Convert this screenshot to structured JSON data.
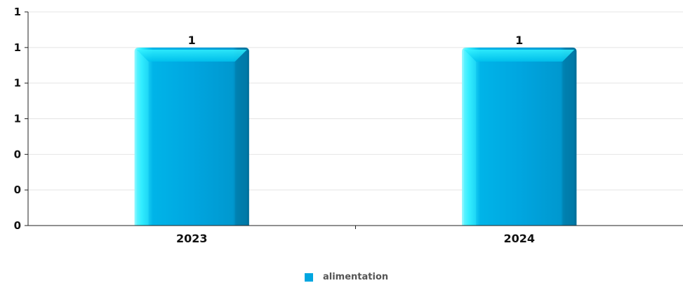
{
  "chart_data": {
    "type": "bar",
    "categories": [
      "2023",
      "2024"
    ],
    "series": [
      {
        "name": "alimentation",
        "values": [
          1,
          1
        ]
      }
    ],
    "data_labels": [
      "1",
      "1"
    ],
    "y_tick_labels": [
      "0",
      "0",
      "0",
      "1",
      "1",
      "1",
      "1"
    ],
    "ylim": [
      0,
      1.2
    ],
    "grid": true,
    "legend": "bottom-center",
    "colors": {
      "bar": "#00a6e0",
      "bar_highlight": "#33eeff",
      "bar_shadow": "#007fae",
      "legend_swatch": "#00a6e0",
      "grid": "#e4e4e4",
      "axis": "#222222"
    }
  }
}
